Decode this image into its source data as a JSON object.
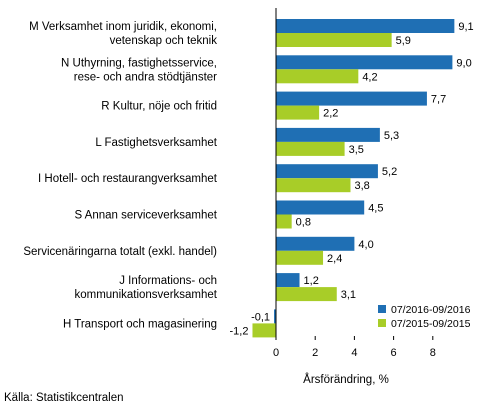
{
  "chart_data": {
    "type": "bar",
    "orientation": "horizontal",
    "categories": [
      "M Verksamhet inom juridik, ekonomi,|vetenskap och teknik",
      "N Uthyrning, fastighetsservice,|rese- och andra stödtjänster",
      "R Kultur, nöje och fritid",
      "L Fastighetsverksamhet",
      "I Hotell- och restaurangverksamhet",
      "S Annan serviceverksamhet",
      "Servicenäringarna totalt (exkl. handel)",
      "J Informations- och|kommunikationsverksamhet",
      "H Transport och magasinering"
    ],
    "series": [
      {
        "name": "07/2016-09/2016",
        "color": "#1f6fb4",
        "values": [
          9.1,
          9.0,
          7.7,
          5.3,
          5.2,
          4.5,
          4.0,
          1.2,
          -0.1
        ],
        "labels": [
          "9,1",
          "9,0",
          "7,7",
          "5,3",
          "5,2",
          "4,5",
          "4,0",
          "1,2",
          "-0,1"
        ]
      },
      {
        "name": "07/2015-09/2015",
        "color": "#a8cd28",
        "values": [
          5.9,
          4.2,
          2.2,
          3.5,
          3.8,
          0.8,
          2.4,
          3.1,
          -1.2
        ],
        "labels": [
          "5,9",
          "4,2",
          "2,2",
          "3,5",
          "3,8",
          "0,8",
          "2,4",
          "3,1",
          "-1,2"
        ]
      }
    ],
    "xlabel": "Årsförändring, %",
    "xlim": [
      -2.5,
      10.5
    ],
    "xticks": [
      0,
      2,
      4,
      6,
      8
    ],
    "xtick_labels": [
      "0",
      "2",
      "4",
      "6",
      "8"
    ],
    "grid": false,
    "legend_position": "bottom-right"
  },
  "footer": {
    "source": "Källa: Statistikcentralen"
  }
}
